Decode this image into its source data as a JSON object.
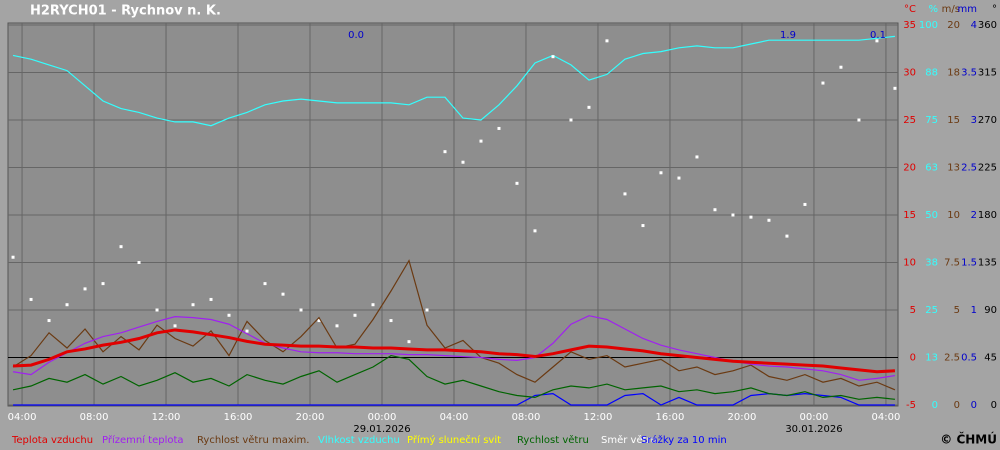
{
  "chart_data": {
    "type": "line",
    "title": "H2RYCH01 - Rychnov n. K.",
    "copyright": "© ČHMÚ",
    "xlim": [
      -0.78,
      48.67
    ],
    "xticks": [
      {
        "value": 0,
        "label": "04:00"
      },
      {
        "value": 4,
        "label": "08:00"
      },
      {
        "value": 8,
        "label": "12:00"
      },
      {
        "value": 12,
        "label": "16:00"
      },
      {
        "value": 16,
        "label": "20:00"
      },
      {
        "value": 20,
        "label": "00:00"
      },
      {
        "value": 24,
        "label": "04:00"
      },
      {
        "value": 28,
        "label": "08:00"
      },
      {
        "value": 32,
        "label": "12:00"
      },
      {
        "value": 36,
        "label": "16:00"
      },
      {
        "value": 40,
        "label": "20:00"
      },
      {
        "value": 44,
        "label": "00:00"
      },
      {
        "value": 48,
        "label": "04:00"
      }
    ],
    "xdates": [
      {
        "value": 20,
        "label": "29.01.2026"
      },
      {
        "value": 44,
        "label": "30.01.2026"
      }
    ],
    "ylim": [
      -5,
      35
    ],
    "yunit": "°C",
    "ycolor": "#e00000",
    "yticks": [
      -5,
      0,
      5,
      10,
      15,
      20,
      25,
      30,
      35
    ],
    "zero_line": 0,
    "grid": true,
    "right_axes": [
      {
        "id": "pct",
        "unit": "%",
        "color": "#33ffff",
        "lim": [
          0,
          100
        ],
        "ticks": [
          0,
          {
            "value": 12.5,
            "label": "13"
          },
          25,
          {
            "value": 37.5,
            "label": "38"
          },
          50,
          {
            "value": 62.5,
            "label": "63"
          },
          75,
          {
            "value": 87.5,
            "label": "88"
          },
          100
        ]
      },
      {
        "id": "ms",
        "unit": "m/s",
        "color": "#6b3a12",
        "lim": [
          0,
          20
        ],
        "ticks": [
          0,
          2.5,
          5,
          7.5,
          10,
          {
            "value": 12.5,
            "label": "13"
          },
          15,
          {
            "value": 17.5,
            "label": "18"
          },
          20
        ]
      },
      {
        "id": "mm",
        "unit": "mm",
        "color": "#0000cc",
        "lim": [
          0,
          4
        ],
        "ticks": [
          0,
          0.5,
          1,
          1.5,
          2,
          2.5,
          3,
          3.5,
          4
        ]
      },
      {
        "id": "deg",
        "unit": "°",
        "color": "#000000",
        "lim": [
          0,
          360
        ],
        "ticks": [
          0,
          45,
          90,
          135,
          180,
          225,
          270,
          315,
          360
        ]
      }
    ],
    "annotations": [
      {
        "label": "0.0",
        "x": 19
      },
      {
        "label": "1.9",
        "x": 43
      },
      {
        "label": "0.1",
        "x": 48
      }
    ],
    "x": [
      -0.5,
      0.5,
      1.5,
      2.5,
      3.5,
      4.5,
      5.5,
      6.5,
      7.5,
      8.5,
      9.5,
      10.5,
      11.5,
      12.5,
      13.5,
      14.5,
      15.5,
      16.5,
      17.5,
      18.5,
      19.5,
      20.5,
      21.5,
      22.5,
      23.5,
      24.5,
      25.5,
      26.5,
      27.5,
      28.5,
      29.5,
      30.5,
      31.5,
      32.5,
      33.5,
      34.5,
      35.5,
      36.5,
      37.5,
      38.5,
      39.5,
      40.5,
      41.5,
      42.5,
      43.5,
      44.5,
      45.5,
      46.5,
      47.5,
      48.5
    ],
    "series": [
      {
        "name": "Teplota vzduchu",
        "color": "#e00000",
        "axis": "y",
        "width": 3,
        "values": [
          -0.9,
          -0.8,
          -0.2,
          0.6,
          0.9,
          1.3,
          1.6,
          2.0,
          2.6,
          2.9,
          2.7,
          2.4,
          2.1,
          1.7,
          1.4,
          1.3,
          1.2,
          1.2,
          1.1,
          1.1,
          1.0,
          1.0,
          0.9,
          0.8,
          0.8,
          0.7,
          0.6,
          0.4,
          0.3,
          0.1,
          0.4,
          0.8,
          1.2,
          1.1,
          0.9,
          0.7,
          0.4,
          0.2,
          0.0,
          -0.2,
          -0.4,
          -0.5,
          -0.6,
          -0.7,
          -0.8,
          -0.9,
          -1.1,
          -1.3,
          -1.5,
          -1.4
        ]
      },
      {
        "name": "Přízemní teplota",
        "color": "#a020f0",
        "axis": "y",
        "values": [
          -1.5,
          -1.8,
          -0.5,
          0.5,
          1.5,
          2.2,
          2.6,
          3.2,
          3.8,
          4.3,
          4.2,
          4.0,
          3.5,
          2.5,
          1.5,
          1.0,
          0.6,
          0.5,
          0.5,
          0.4,
          0.4,
          0.4,
          0.3,
          0.3,
          0.2,
          0.1,
          0.0,
          -0.2,
          -0.3,
          0.0,
          1.5,
          3.5,
          4.4,
          4.0,
          3.0,
          2.0,
          1.3,
          0.8,
          0.4,
          0.0,
          -0.4,
          -0.7,
          -0.9,
          -1.0,
          -1.2,
          -1.4,
          -1.8,
          -2.4,
          -2.2,
          -1.9
        ]
      },
      {
        "name": "Rychlost větru maxim.",
        "color": "#6b3a12",
        "axis": "ms",
        "values": [
          2.0,
          2.6,
          3.8,
          3.0,
          4.0,
          2.8,
          3.6,
          2.9,
          4.2,
          3.5,
          3.1,
          3.9,
          2.6,
          4.4,
          3.4,
          2.8,
          3.6,
          4.6,
          3.0,
          3.2,
          4.5,
          6.0,
          7.6,
          4.2,
          3.0,
          3.4,
          2.5,
          2.2,
          1.6,
          1.2,
          2.0,
          2.8,
          2.4,
          2.6,
          2.0,
          2.2,
          2.4,
          1.8,
          2.0,
          1.6,
          1.8,
          2.1,
          1.5,
          1.3,
          1.6,
          1.2,
          1.4,
          1.0,
          1.2,
          0.8
        ]
      },
      {
        "name": "Vlhkost vzduchu",
        "color": "#33ffff",
        "axis": "pct",
        "values": [
          92,
          91,
          89.5,
          88,
          84,
          80,
          78,
          77,
          75.5,
          74.5,
          74.5,
          73.5,
          75.5,
          77,
          79,
          80,
          80.5,
          80,
          79.5,
          79.5,
          79.5,
          79.5,
          79,
          81,
          81,
          75.5,
          75,
          79,
          84,
          90,
          92,
          89.5,
          85.5,
          87,
          91,
          92.5,
          93,
          94,
          94.5,
          94,
          94,
          95,
          96,
          96,
          96,
          96,
          96,
          96,
          96.5,
          97
        ]
      },
      {
        "name": "Přímý sluneční svit",
        "color": "#ffff00",
        "axis": "pct",
        "values": [
          null,
          null,
          null,
          null,
          null,
          null,
          null,
          null,
          null,
          null,
          null,
          null,
          null,
          null,
          null,
          null,
          null,
          null,
          null,
          null,
          null,
          null,
          null,
          null,
          null,
          null,
          null,
          null,
          null,
          null,
          null,
          null,
          null,
          null,
          null,
          null,
          null,
          null,
          null,
          null,
          null,
          null,
          null,
          null,
          null,
          null,
          null,
          null,
          null,
          null
        ]
      },
      {
        "name": "Rychlost větru",
        "color": "#006400",
        "axis": "ms",
        "values": [
          0.8,
          1.0,
          1.4,
          1.2,
          1.6,
          1.1,
          1.5,
          1.0,
          1.3,
          1.7,
          1.2,
          1.4,
          1.0,
          1.6,
          1.3,
          1.1,
          1.5,
          1.8,
          1.2,
          1.6,
          2.0,
          2.6,
          2.4,
          1.5,
          1.1,
          1.3,
          1.0,
          0.7,
          0.5,
          0.4,
          0.8,
          1.0,
          0.9,
          1.1,
          0.8,
          0.9,
          1.0,
          0.7,
          0.8,
          0.6,
          0.7,
          0.9,
          0.6,
          0.5,
          0.7,
          0.4,
          0.5,
          0.3,
          0.4,
          0.3
        ]
      },
      {
        "name": "Směr větru",
        "color": "#ffffff",
        "axis": "deg",
        "style": "dots",
        "values": [
          140,
          100,
          80,
          95,
          110,
          115,
          150,
          135,
          90,
          75,
          95,
          100,
          85,
          70,
          115,
          105,
          90,
          80,
          75,
          85,
          95,
          80,
          60,
          90,
          240,
          230,
          250,
          262,
          210,
          165,
          330,
          270,
          282,
          345,
          200,
          170,
          220,
          215,
          235,
          185,
          180,
          178,
          175,
          160,
          190,
          305,
          320,
          270,
          345,
          300
        ]
      },
      {
        "name": "Srážky za 10 min",
        "color": "#0000ff",
        "axis": "mm",
        "values": [
          0,
          0,
          0,
          0,
          0,
          0,
          0,
          0,
          0,
          0,
          0,
          0,
          0,
          0,
          0,
          0,
          0,
          0,
          0,
          0,
          0,
          0,
          0,
          0,
          0,
          0,
          0,
          0,
          0,
          0.1,
          0.12,
          0,
          0,
          0,
          0.1,
          0.12,
          0,
          0.08,
          0,
          0,
          0,
          0.1,
          0.12,
          0.1,
          0.12,
          0.1,
          0.08,
          0,
          0,
          0
        ]
      }
    ]
  }
}
